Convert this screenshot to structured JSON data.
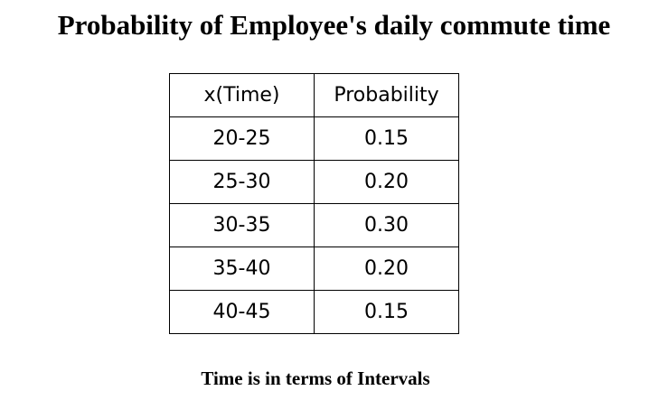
{
  "title": "Probability of Employee's daily commute time",
  "table": {
    "headers": [
      "x(Time)",
      "Probability"
    ],
    "rows": [
      [
        "20-25",
        "0.15"
      ],
      [
        "25-30",
        "0.20"
      ],
      [
        "30-35",
        "0.30"
      ],
      [
        "35-40",
        "0.20"
      ],
      [
        "40-45",
        "0.15"
      ]
    ]
  },
  "footnote": "Time is in terms of Intervals"
}
